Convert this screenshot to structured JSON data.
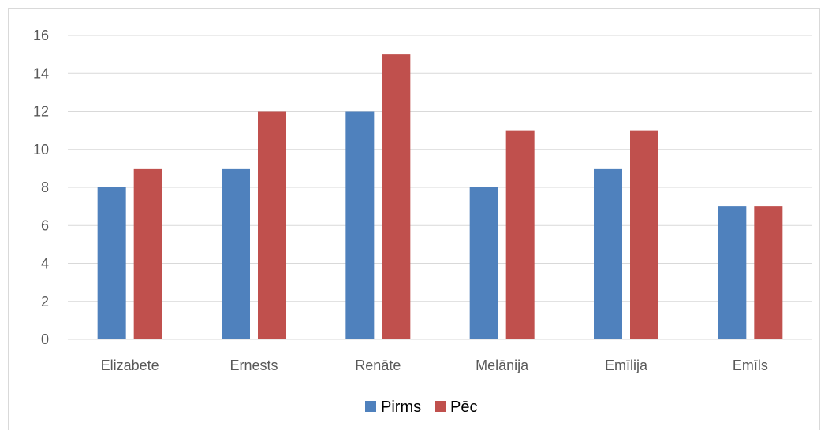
{
  "chart_data": {
    "type": "bar",
    "categories": [
      "Elizabete",
      "Ernests",
      "Renāte",
      "Melānija",
      "Emīlija",
      "Emīls"
    ],
    "series": [
      {
        "name": "Pirms",
        "values": [
          8,
          9,
          12,
          8,
          9,
          7
        ],
        "color": "#4f81bd"
      },
      {
        "name": "Pēc",
        "values": [
          9,
          12,
          15,
          11,
          11,
          7
        ],
        "color": "#c0504d"
      }
    ],
    "ylim": [
      0,
      16
    ],
    "yticks": [
      0,
      2,
      4,
      6,
      8,
      10,
      12,
      14,
      16
    ],
    "grid": true,
    "legend": "bottom",
    "title": "",
    "xlabel": "",
    "ylabel": ""
  }
}
